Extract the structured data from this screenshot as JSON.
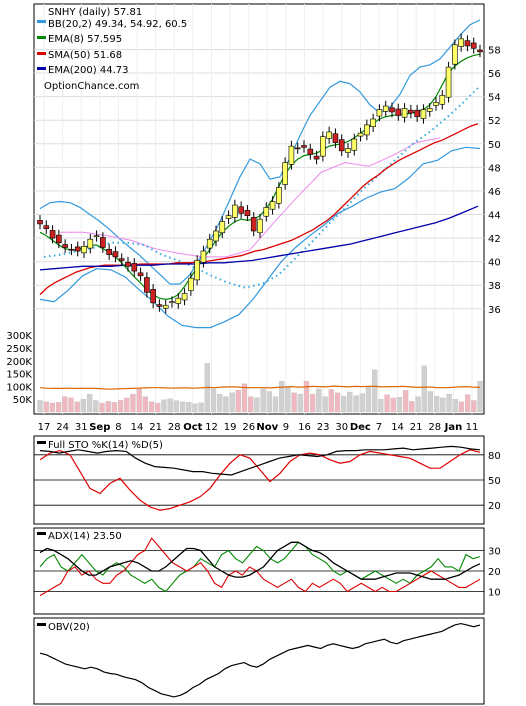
{
  "chart_data": {
    "type": "line",
    "title": "SNHY (daily) 57.81",
    "watermark": "OptionChance.com",
    "price_panel": {
      "legend": [
        {
          "label": "BB(20,2) 49.34, 54.92, 60.5",
          "color": "#3399dd"
        },
        {
          "label": "EMA(8) 57.595",
          "color": "#008800"
        },
        {
          "label": "SMA(50) 51.68",
          "color": "#dd0000"
        },
        {
          "label": "EMA(200) 44.73",
          "color": "#0000aa"
        }
      ],
      "y_ticks": [
        "58",
        "56",
        "54",
        "52",
        "50",
        "48",
        "46",
        "44",
        "42",
        "40",
        "38",
        "36"
      ],
      "volume_ticks": [
        "300K",
        "250K",
        "200K",
        "150K",
        "100K",
        "50K"
      ],
      "x_labels": [
        "17",
        "24",
        "31",
        "Sep",
        "8",
        "14",
        "21",
        "28",
        "Oct",
        "12",
        "19",
        "26",
        "Nov",
        "9",
        "16",
        "23",
        "30",
        "Dec",
        "7",
        "14",
        "21",
        "28",
        "Jan",
        "11"
      ],
      "close": [
        43.2,
        42.8,
        42.0,
        41.6,
        41.2,
        41.0,
        40.9,
        41.3,
        41.9,
        42.2,
        41.2,
        40.6,
        40.4,
        40.1,
        39.6,
        39.2,
        38.8,
        37.4,
        36.5,
        36.2,
        36.3,
        36.6,
        36.9,
        37.3,
        38.6,
        40.1,
        40.9,
        41.9,
        42.6,
        43.4,
        43.9,
        44.8,
        44.1,
        43.9,
        42.6,
        43.6,
        44.6,
        45.1,
        46.3,
        48.4,
        49.8,
        49.6,
        49.7,
        49.1,
        48.7,
        50.6,
        51.0,
        50.1,
        49.4,
        49.6,
        50.4,
        50.9,
        51.6,
        52.1,
        52.9,
        53.2,
        52.7,
        52.4,
        53.0,
        52.6,
        52.3,
        52.9,
        53.0,
        53.5,
        54.1,
        56.5,
        58.4,
        58.9,
        58.3,
        58.1,
        57.8
      ],
      "ema8": [
        42.5,
        42.2,
        41.8,
        41.4,
        41.1,
        41.0,
        41.0,
        41.2,
        41.4,
        41.4,
        41.1,
        40.8,
        40.4,
        39.9,
        39.3,
        38.7,
        38.2,
        37.6,
        37.2,
        36.9,
        36.8,
        36.9,
        37.2,
        37.9,
        38.7,
        39.5,
        40.3,
        41.0,
        41.8,
        42.5,
        43.0,
        43.4,
        43.6,
        43.5,
        43.6,
        43.9,
        44.5,
        45.3,
        46.4,
        47.4,
        48.2,
        48.7,
        49.0,
        49.1,
        49.2,
        49.5,
        49.8,
        49.9,
        50.0,
        50.2,
        50.5,
        50.9,
        51.3,
        51.7,
        52.1,
        52.3,
        52.4,
        52.5,
        52.5,
        52.6,
        52.7,
        52.9,
        53.3,
        54.0,
        55.0,
        56.0,
        56.6,
        57.0,
        57.3,
        57.5,
        57.6
      ],
      "sma50": [
        37.2,
        37.8,
        38.2,
        38.5,
        38.8,
        39.1,
        39.3,
        39.5,
        39.6,
        39.7,
        39.7,
        39.7,
        39.7,
        39.7,
        39.8,
        39.8,
        39.8,
        39.8,
        39.8,
        39.9,
        39.9,
        39.9,
        40.0,
        40.0,
        40.1,
        40.2,
        40.3,
        40.4,
        40.5,
        40.7,
        40.9,
        41.0,
        41.2,
        41.4,
        41.6,
        41.8,
        42.1,
        42.4,
        42.7,
        43.1,
        43.5,
        44.0,
        44.6,
        45.2,
        45.8,
        46.4,
        46.9,
        47.3,
        47.8,
        48.2,
        48.6,
        48.9,
        49.2,
        49.5,
        49.8,
        50.1,
        50.3,
        50.6,
        50.9,
        51.2,
        51.5,
        51.7
      ],
      "ema200": [
        39.3,
        39.4,
        39.5,
        39.6,
        39.6,
        39.6,
        39.7,
        39.7,
        39.7,
        39.8,
        39.8,
        39.8,
        39.9,
        39.9,
        40.0,
        40.1,
        40.3,
        40.5,
        40.7,
        40.9,
        41.1,
        41.3,
        41.5,
        41.8,
        42.1,
        42.4,
        42.7,
        43.0,
        43.3,
        43.7,
        44.2,
        44.7
      ],
      "bb_upper": [
        44.5,
        45.0,
        45.1,
        45.0,
        44.6,
        44.0,
        43.4,
        42.7,
        41.9,
        41.2,
        40.5,
        39.7,
        38.9,
        38.1,
        38.1,
        38.9,
        40.3,
        41.8,
        43.4,
        45.3,
        47.2,
        48.7,
        48.3,
        47.0,
        47.2,
        48.8,
        50.7,
        52.4,
        53.6,
        54.8,
        55.3,
        55.1,
        54.4,
        53.3,
        52.6,
        53.1,
        54.2,
        55.8,
        56.5,
        56.7,
        57.2,
        58.2,
        59.2,
        60.1,
        60.5
      ],
      "bb_lower": [
        36.8,
        36.6,
        37.6,
        38.8,
        39.4,
        39.3,
        38.7,
        37.6,
        36.6,
        35.4,
        34.6,
        34.4,
        34.4,
        34.9,
        35.5,
        36.8,
        38.4,
        40.0,
        41.2,
        42.2,
        43.1,
        44.1,
        44.7,
        45.4,
        45.9,
        46.2,
        47.1,
        48.3,
        48.6,
        49.4,
        49.7,
        49.6
      ],
      "bb_middle_dots": [
        40.4,
        40.6,
        40.9,
        41.2,
        41.6,
        41.6,
        41.4,
        40.6,
        40.1,
        39.5,
        38.8,
        38.2,
        37.8,
        38.1,
        38.9,
        40.3,
        41.7,
        43.2,
        44.6,
        46.1,
        47.4,
        48.7,
        50.0,
        51.0,
        52.2,
        53.5,
        54.9
      ],
      "bb_middle_pink": [
        42.5,
        42.5,
        42.2,
        41.8,
        41.1,
        40.7,
        40.4,
        40.4,
        41.0,
        43.3,
        45.5,
        47.6,
        48.4,
        48.1,
        49.0,
        50.1,
        50.5
      ],
      "volume_k": [
        45,
        40,
        35,
        38,
        60,
        55,
        40,
        50,
        70,
        45,
        35,
        42,
        38,
        46,
        55,
        70,
        90,
        60,
        40,
        35,
        48,
        52,
        44,
        40,
        38,
        32,
        36,
        190,
        90,
        70,
        60,
        75,
        85,
        110,
        60,
        56,
        90,
        80,
        60,
        120,
        100,
        75,
        70,
        120,
        70,
        90,
        60,
        88,
        75,
        62,
        78,
        64,
        72,
        100,
        165,
        50,
        68,
        55,
        58,
        85,
        42,
        60,
        180,
        80,
        62,
        55,
        70,
        50,
        40,
        68,
        45,
        120
      ],
      "volume_avg_k": [
        95,
        93,
        92,
        92,
        93,
        92,
        92,
        93,
        92,
        90,
        89,
        90,
        91,
        92,
        93,
        94,
        95,
        95,
        94,
        93,
        94,
        94,
        93,
        94,
        96,
        95,
        97,
        98,
        98,
        96,
        95,
        95,
        95,
        94,
        96,
        97,
        99,
        97,
        98,
        100,
        99,
        98,
        101,
        100,
        98,
        100,
        99,
        100,
        100,
        98,
        99,
        99,
        100,
        98,
        96,
        97,
        97,
        95,
        95,
        96,
        98,
        99,
        97,
        96
      ]
    },
    "sto_panel": {
      "label": "Full STO %K(14) %D(5)",
      "y_ticks": [
        "80",
        "50",
        "20"
      ],
      "k": [
        85,
        84,
        82,
        84,
        86,
        84,
        82,
        84,
        85,
        84,
        76,
        70,
        66,
        65,
        64,
        62,
        60,
        60,
        58,
        57,
        56,
        60,
        64,
        68,
        72,
        76,
        78,
        80,
        79,
        78,
        80,
        84,
        85,
        85,
        86,
        86,
        86,
        87,
        88,
        86,
        87,
        88,
        89,
        90,
        89,
        87,
        86
      ],
      "d": [
        82,
        85,
        86,
        80,
        68,
        55,
        40,
        30,
        24,
        22,
        30,
        44,
        56,
        62,
        50,
        38,
        28,
        20,
        16,
        14,
        16,
        19,
        22,
        24,
        24,
        26,
        26,
        30,
        38,
        46,
        54,
        60,
        66,
        72,
        78,
        82,
        84,
        82,
        80,
        78,
        74,
        70,
        66,
        70,
        76,
        80,
        82,
        84,
        88,
        86,
        78,
        68,
        66,
        72,
        80,
        82,
        84,
        84,
        80,
        76,
        70,
        66,
        68,
        74,
        82,
        84,
        83,
        82,
        80,
        78,
        80,
        78,
        76,
        72,
        66,
        62,
        62,
        70,
        78,
        86,
        84,
        82
      ],
      "d_kinks": [
        74,
        82,
        85,
        80,
        60,
        40,
        34,
        46,
        52,
        38,
        26,
        18,
        14,
        16,
        20,
        24,
        30,
        40,
        56,
        70,
        80,
        76,
        62,
        48,
        58,
        72,
        80,
        82,
        80,
        74,
        70,
        72,
        80,
        84,
        82,
        80,
        78,
        76,
        70,
        64,
        64,
        72,
        80,
        86,
        83
      ]
    },
    "adx_panel": {
      "label": "ADX(14) 23.50",
      "y_ticks": [
        "30",
        "20",
        "10"
      ],
      "adx": [
        29,
        31,
        30,
        28,
        26,
        23,
        20,
        18,
        18,
        20,
        22,
        23,
        24,
        25,
        24,
        22,
        20,
        20,
        22,
        25,
        28,
        31,
        31,
        30,
        26,
        22,
        20,
        18,
        17,
        17,
        18,
        20,
        22,
        26,
        30,
        32,
        34,
        34,
        32,
        30,
        29,
        27,
        24,
        22,
        20,
        18,
        16,
        16,
        16,
        17,
        18,
        19,
        19,
        19,
        18,
        17,
        16,
        16,
        16,
        17,
        18,
        20,
        22,
        23.5
      ],
      "plus_di": [
        22,
        26,
        28,
        22,
        20,
        24,
        28,
        24,
        20,
        18,
        22,
        24,
        22,
        18,
        16,
        14,
        16,
        12,
        10,
        14,
        18,
        20,
        22,
        26,
        24,
        22,
        28,
        30,
        26,
        24,
        28,
        32,
        30,
        26,
        24,
        26,
        30,
        34,
        32,
        28,
        26,
        24,
        20,
        18,
        20,
        18,
        16,
        18,
        20,
        18,
        16,
        14,
        16,
        14,
        18,
        20,
        22,
        26,
        22,
        22,
        20,
        28,
        26,
        27
      ],
      "minus_di": [
        8,
        10,
        12,
        14,
        20,
        22,
        18,
        20,
        16,
        14,
        14,
        18,
        20,
        24,
        28,
        30,
        36,
        32,
        28,
        24,
        22,
        20,
        22,
        24,
        20,
        14,
        12,
        18,
        20,
        18,
        22,
        20,
        16,
        14,
        12,
        14,
        16,
        12,
        10,
        14,
        12,
        14,
        16,
        14,
        10,
        12,
        14,
        12,
        10,
        12,
        10,
        10,
        12,
        14,
        16,
        18,
        20,
        18,
        16,
        14,
        12,
        12,
        14,
        16
      ]
    },
    "obv_panel": {
      "label": "OBV(20)",
      "values": [
        60,
        58,
        54,
        50,
        46,
        44,
        42,
        40,
        42,
        40,
        36,
        34,
        33,
        30,
        28,
        26,
        22,
        16,
        12,
        8,
        6,
        4,
        6,
        10,
        16,
        20,
        26,
        30,
        34,
        40,
        44,
        46,
        48,
        44,
        42,
        46,
        52,
        56,
        60,
        64,
        66,
        68,
        70,
        68,
        66,
        70,
        72,
        70,
        68,
        66,
        68,
        72,
        74,
        76,
        78,
        74,
        72,
        76,
        78,
        80,
        82,
        84,
        86,
        88,
        92,
        96,
        98,
        96,
        94,
        96
      ]
    }
  }
}
